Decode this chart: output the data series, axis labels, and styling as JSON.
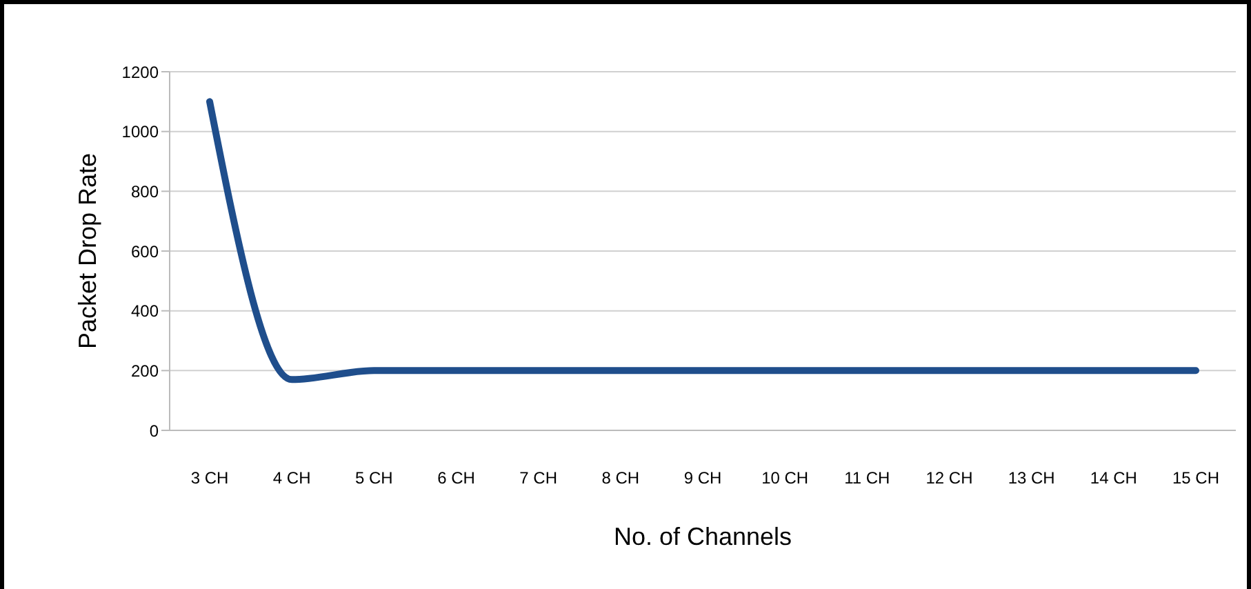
{
  "chart_data": {
    "type": "line",
    "xlabel": "No. of Channels",
    "ylabel": "Packet Drop Rate",
    "categories": [
      "3 CH",
      "4 CH",
      "5 CH",
      "6 CH",
      "7 CH",
      "8 CH",
      "9 CH",
      "10 CH",
      "11 CH",
      "12 CH",
      "13 CH",
      "14 CH",
      "15 CH"
    ],
    "series": [
      {
        "color": "#1f4e8c",
        "values": [
          1100,
          170,
          200,
          200,
          200,
          200,
          200,
          200,
          200,
          200,
          200,
          200,
          200
        ]
      }
    ],
    "ylim": [
      0,
      1200
    ],
    "yticks": [
      0,
      200,
      400,
      600,
      800,
      1000,
      1200
    ],
    "grid": "y",
    "legend": false,
    "marker": "none",
    "line_style": "solid"
  }
}
